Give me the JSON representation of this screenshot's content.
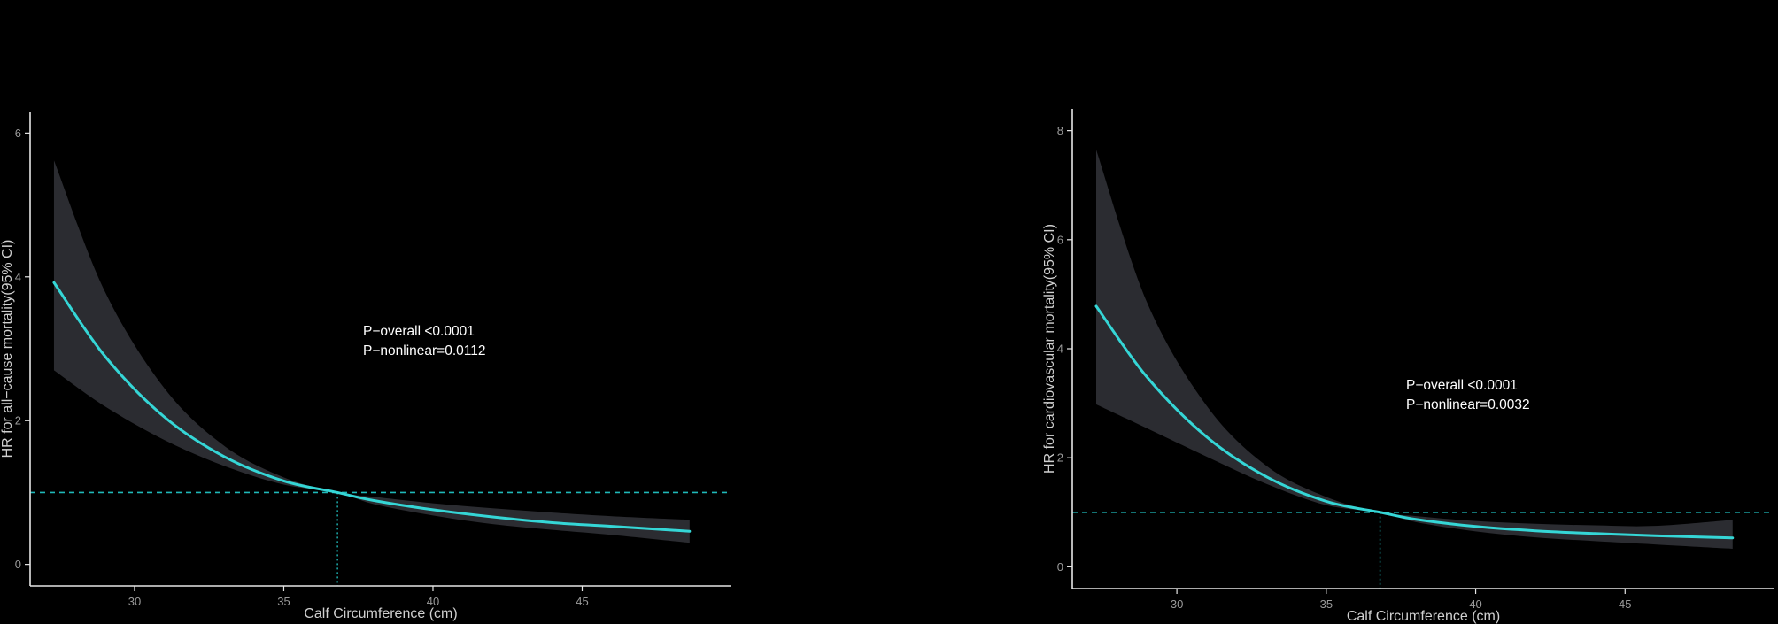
{
  "colors": {
    "background": "#000000",
    "curve": "#35d6d6",
    "band": "#2b2c31",
    "reference_line": "#1fb8b8",
    "axis": "#e6e6e6"
  },
  "chart_data": [
    {
      "type": "line",
      "xlabel": "Calf Circumference (cm)",
      "ylabel": "HR for all−cause mortality(95% CI)",
      "x_ticks": [
        "30",
        "35",
        "40",
        "45"
      ],
      "y_ticks": [
        "0",
        "2",
        "4",
        "6"
      ],
      "xlim": [
        26.5,
        50.0
      ],
      "ylim": [
        -0.3,
        6.3
      ],
      "reference_hr": 1.0,
      "reference_x": 36.8,
      "annotations": [
        "P−overall <0.0001",
        "P−nonlinear=0.0112"
      ],
      "series": [
        {
          "x": [
            27.3,
            29,
            31,
            33,
            35,
            36.8,
            38,
            40,
            42,
            44,
            46,
            48.6
          ],
          "hr": [
            3.92,
            2.9,
            2.05,
            1.5,
            1.16,
            1.0,
            0.89,
            0.76,
            0.66,
            0.58,
            0.53,
            0.46
          ],
          "ci_lower": [
            2.7,
            2.2,
            1.73,
            1.37,
            1.11,
            1.0,
            0.84,
            0.68,
            0.56,
            0.48,
            0.41,
            0.3
          ],
          "ci_upper": [
            5.62,
            3.8,
            2.45,
            1.65,
            1.21,
            1.0,
            0.94,
            0.85,
            0.78,
            0.72,
            0.67,
            0.62
          ]
        }
      ]
    },
    {
      "type": "line",
      "xlabel": "Calf Circumference (cm)",
      "ylabel": "HR for cardiovascular mortality(95% CI)",
      "x_ticks": [
        "30",
        "35",
        "40",
        "45"
      ],
      "y_ticks": [
        "0",
        "2",
        "4",
        "6",
        "8"
      ],
      "xlim": [
        26.5,
        50.0
      ],
      "ylim": [
        -0.4,
        8.4
      ],
      "reference_hr": 1.0,
      "reference_x": 36.8,
      "annotations": [
        "P−overall <0.0001",
        "P−nonlinear=0.0032"
      ],
      "series": [
        {
          "x": [
            27.3,
            29,
            31,
            33,
            35,
            36.8,
            38,
            40,
            42,
            44,
            46,
            48.6
          ],
          "hr": [
            4.78,
            3.48,
            2.38,
            1.65,
            1.2,
            1.0,
            0.87,
            0.74,
            0.66,
            0.61,
            0.57,
            0.53
          ],
          "ci_lower": [
            2.98,
            2.54,
            2.02,
            1.52,
            1.13,
            1.0,
            0.82,
            0.65,
            0.54,
            0.47,
            0.41,
            0.33
          ],
          "ci_upper": [
            7.65,
            4.85,
            2.95,
            1.85,
            1.28,
            1.0,
            0.93,
            0.84,
            0.79,
            0.76,
            0.75,
            0.86
          ]
        }
      ]
    }
  ]
}
